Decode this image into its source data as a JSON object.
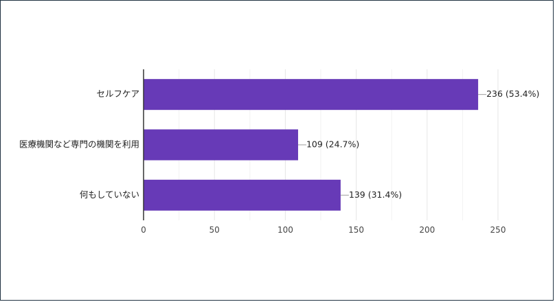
{
  "chart_data": {
    "type": "bar",
    "orientation": "horizontal",
    "categories": [
      "セルフケア",
      "医療機関など専門の機関を利用",
      "何もしていない"
    ],
    "values": [
      236,
      109,
      139
    ],
    "data_labels": [
      "236 (53.4%)",
      "109 (24.7%)",
      "139 (31.4%)"
    ],
    "xticks": [
      "0",
      "50",
      "100",
      "150",
      "200",
      "250"
    ],
    "xlim": [
      0,
      250
    ],
    "grid": true,
    "title": "",
    "xlabel": "",
    "ylabel": "",
    "colors": {
      "bar": "#673ab7",
      "grid": "#e6e6e6",
      "axis": "#333333",
      "leader": "#9e9e9e"
    }
  }
}
